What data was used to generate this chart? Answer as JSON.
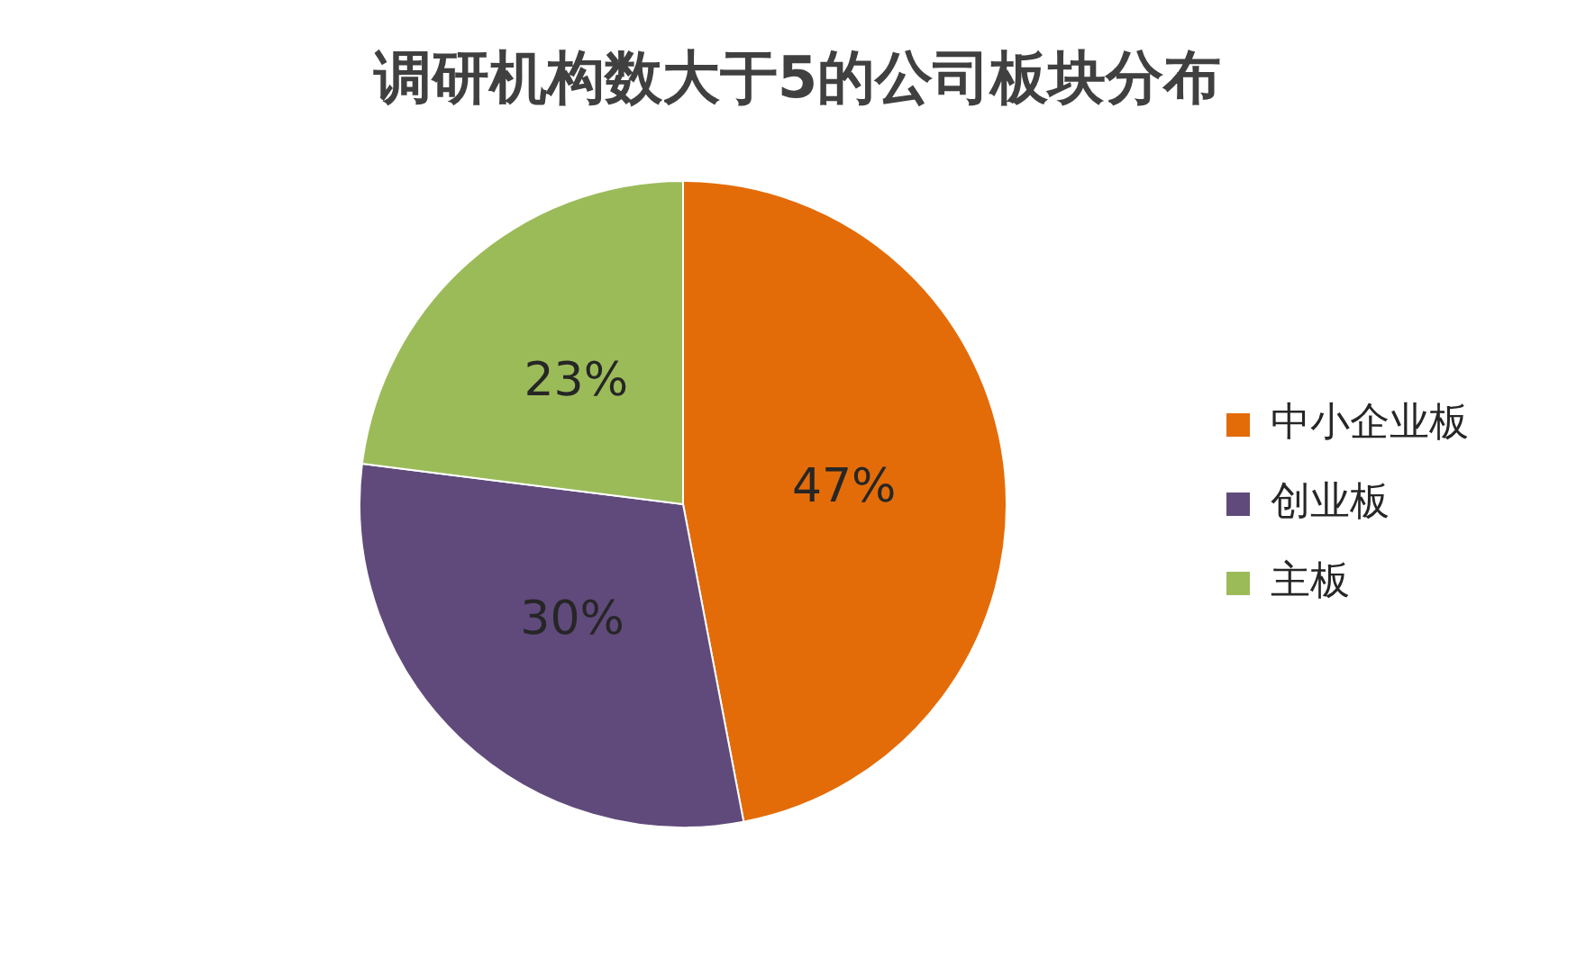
{
  "chart_data": {
    "type": "pie",
    "title": "调研机构数大于5的公司板块分布",
    "categories": [
      "中小企业板",
      "创业板",
      "主板"
    ],
    "values": [
      47,
      30,
      23
    ],
    "colors": [
      "#e36c09",
      "#604a7b",
      "#9bbb59"
    ],
    "value_labels": [
      "47%",
      "30%",
      "23%"
    ],
    "legend": "right"
  }
}
